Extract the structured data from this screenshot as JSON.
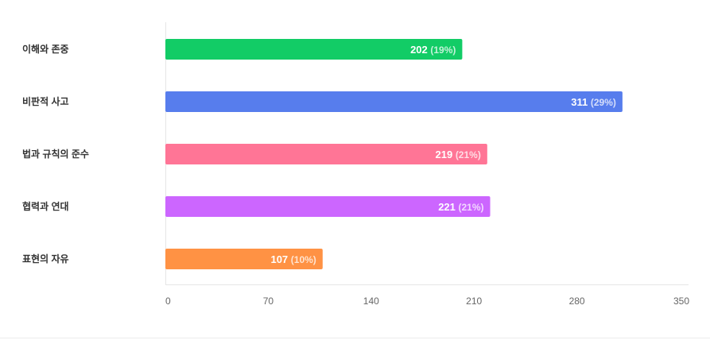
{
  "chart_data": {
    "type": "bar",
    "orientation": "horizontal",
    "categories": [
      "이해와 존중",
      "비판적 사고",
      "법과 규칙의 준수",
      "협력과 연대",
      "표현의 자유"
    ],
    "values": [
      202,
      311,
      219,
      221,
      107
    ],
    "percent_labels": [
      "(19%)",
      "(29%)",
      "(21%)",
      "(21%)",
      "(10%)"
    ],
    "colors": [
      "#12cc66",
      "#577ded",
      "#ff7596",
      "#cc66ff",
      "#ff9244"
    ],
    "xlim": [
      0,
      350
    ],
    "xticks": [
      0,
      70,
      140,
      210,
      280,
      350
    ],
    "title": "",
    "xlabel": "",
    "ylabel": "",
    "grid": false,
    "legend": "none"
  }
}
